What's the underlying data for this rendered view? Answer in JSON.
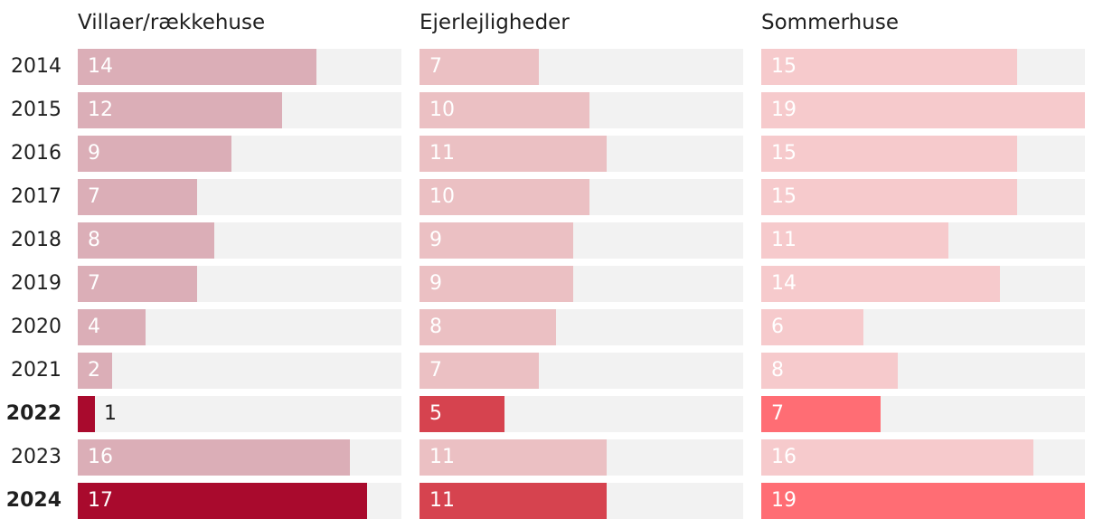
{
  "chart_data": {
    "type": "bar",
    "orientation": "horizontal",
    "layout": "small-multiples",
    "categories": [
      "2014",
      "2015",
      "2016",
      "2017",
      "2018",
      "2019",
      "2020",
      "2021",
      "2022",
      "2023",
      "2024"
    ],
    "highlighted_categories": [
      "2022",
      "2024"
    ],
    "xlim": [
      0,
      19
    ],
    "series": [
      {
        "name": "Villaer/rækkehuse",
        "values": [
          14,
          12,
          9,
          7,
          8,
          7,
          4,
          2,
          1,
          16,
          17
        ],
        "color": "#dbaeb7",
        "highlight_color": "#a90a2d"
      },
      {
        "name": "Ejerlejligheder",
        "values": [
          7,
          10,
          11,
          10,
          9,
          9,
          8,
          7,
          5,
          11,
          11
        ],
        "color": "#ebc0c3",
        "highlight_color": "#d6434f"
      },
      {
        "name": "Sommerhuse",
        "values": [
          15,
          19,
          15,
          15,
          11,
          14,
          6,
          8,
          7,
          16,
          19
        ],
        "color": "#f6cacc",
        "highlight_color": "#ff6d74"
      }
    ],
    "track_color": "#f2f2f2"
  }
}
